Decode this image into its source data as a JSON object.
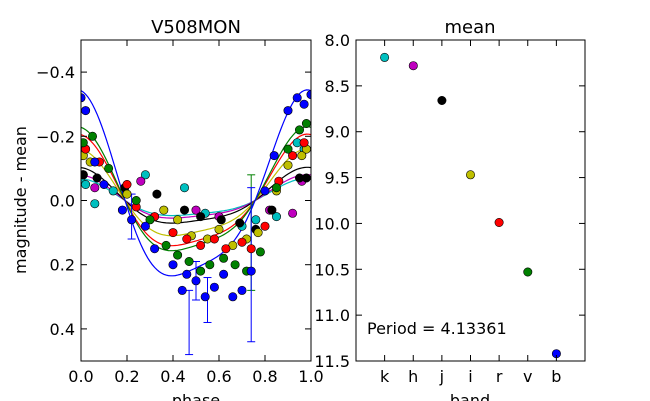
{
  "chart_data": [
    {
      "type": "scatter",
      "title": "V508MON",
      "xlabel": "phase",
      "ylabel": "magnitude - mean",
      "xlim": [
        0.0,
        1.0
      ],
      "ylim": [
        0.5,
        -0.5
      ],
      "xticks": [
        "0.0",
        "0.2",
        "0.4",
        "0.6",
        "0.8",
        "1.0"
      ],
      "yticks": [
        "−0.4",
        "−0.2",
        "0.0",
        "0.2",
        "0.4"
      ],
      "ytick_values": [
        -0.4,
        -0.2,
        0.0,
        0.2,
        0.4
      ],
      "xtick_values": [
        0.0,
        0.2,
        0.4,
        0.6,
        0.8,
        1.0
      ],
      "series": [
        {
          "name": "k",
          "color": "#00bfbf",
          "amplitude": 0.06,
          "points": [
            [
              0.0,
              -0.06
            ],
            [
              0.02,
              -0.05
            ],
            [
              0.06,
              0.01
            ],
            [
              0.14,
              -0.03
            ],
            [
              0.28,
              -0.08
            ],
            [
              0.45,
              -0.04
            ],
            [
              0.54,
              0.04
            ],
            [
              0.7,
              0.08
            ],
            [
              0.76,
              0.06
            ],
            [
              0.85,
              0.05
            ],
            [
              0.94,
              -0.18
            ],
            [
              0.97,
              -0.16
            ]
          ]
        },
        {
          "name": "h",
          "color": "#bf00bf",
          "amplitude": 0.07,
          "points": [
            [
              0.01,
              -0.08
            ],
            [
              0.06,
              -0.04
            ],
            [
              0.26,
              -0.06
            ],
            [
              0.5,
              0.03
            ],
            [
              0.6,
              0.05
            ],
            [
              0.82,
              0.03
            ],
            [
              0.92,
              0.04
            ],
            [
              0.96,
              -0.06
            ]
          ]
        },
        {
          "name": "j",
          "color": "#000000",
          "amplitude": 0.09,
          "points": [
            [
              0.01,
              -0.08
            ],
            [
              0.07,
              -0.07
            ],
            [
              0.19,
              -0.04
            ],
            [
              0.33,
              -0.02
            ],
            [
              0.45,
              0.03
            ],
            [
              0.52,
              0.05
            ],
            [
              0.61,
              0.06
            ],
            [
              0.69,
              0.07
            ],
            [
              0.76,
              0.09
            ],
            [
              0.83,
              0.03
            ],
            [
              0.95,
              -0.07
            ],
            [
              0.98,
              -0.07
            ]
          ]
        },
        {
          "name": "i",
          "color": "#bfbf00",
          "amplitude": 0.14,
          "points": [
            [
              0.01,
              -0.14
            ],
            [
              0.04,
              -0.12
            ],
            [
              0.2,
              -0.02
            ],
            [
              0.36,
              0.03
            ],
            [
              0.42,
              0.06
            ],
            [
              0.48,
              0.11
            ],
            [
              0.55,
              0.12
            ],
            [
              0.6,
              0.09
            ],
            [
              0.66,
              0.14
            ],
            [
              0.72,
              0.12
            ],
            [
              0.77,
              0.1
            ],
            [
              0.85,
              -0.03
            ],
            [
              0.9,
              -0.11
            ],
            [
              0.96,
              -0.14
            ],
            [
              0.98,
              -0.16
            ]
          ]
        },
        {
          "name": "r",
          "color": "#ff0000",
          "amplitude": 0.18,
          "points": [
            [
              0.02,
              -0.16
            ],
            [
              0.08,
              -0.12
            ],
            [
              0.2,
              -0.05
            ],
            [
              0.24,
              0.02
            ],
            [
              0.32,
              0.05
            ],
            [
              0.4,
              0.1
            ],
            [
              0.46,
              0.12
            ],
            [
              0.52,
              0.14
            ],
            [
              0.58,
              0.12
            ],
            [
              0.63,
              0.15
            ],
            [
              0.7,
              0.13
            ],
            [
              0.74,
              0.15
            ],
            [
              0.8,
              0.08
            ],
            [
              0.86,
              -0.06
            ],
            [
              0.92,
              -0.14
            ],
            [
              0.97,
              -0.18
            ]
          ]
        },
        {
          "name": "v",
          "color": "#008000",
          "amplitude": 0.2,
          "points": [
            [
              0.01,
              -0.18
            ],
            [
              0.05,
              -0.2
            ],
            [
              0.12,
              -0.1
            ],
            [
              0.24,
              0.0
            ],
            [
              0.3,
              0.06
            ],
            [
              0.37,
              0.14
            ],
            [
              0.42,
              0.17
            ],
            [
              0.47,
              0.19
            ],
            [
              0.52,
              0.22
            ],
            [
              0.56,
              0.2
            ],
            [
              0.62,
              0.18
            ],
            [
              0.67,
              0.2
            ],
            [
              0.72,
              0.22
            ],
            [
              0.78,
              0.16
            ],
            [
              0.85,
              -0.04
            ],
            [
              0.9,
              -0.16
            ],
            [
              0.95,
              -0.22
            ],
            [
              0.98,
              -0.24
            ]
          ]
        },
        {
          "name": "b",
          "color": "#0000ff",
          "amplitude": 0.3,
          "points": [
            [
              0.0,
              -0.32
            ],
            [
              0.02,
              -0.28
            ],
            [
              0.06,
              -0.12
            ],
            [
              0.1,
              -0.05
            ],
            [
              0.18,
              0.03
            ],
            [
              0.22,
              0.06
            ],
            [
              0.28,
              0.08
            ],
            [
              0.32,
              0.15
            ],
            [
              0.4,
              0.2
            ],
            [
              0.44,
              0.28
            ],
            [
              0.46,
              0.23
            ],
            [
              0.5,
              0.25
            ],
            [
              0.54,
              0.3
            ],
            [
              0.58,
              0.27
            ],
            [
              0.62,
              0.23
            ],
            [
              0.66,
              0.3
            ],
            [
              0.7,
              0.28
            ],
            [
              0.74,
              0.22
            ],
            [
              0.8,
              -0.03
            ],
            [
              0.84,
              -0.14
            ],
            [
              0.9,
              -0.28
            ],
            [
              0.94,
              -0.32
            ],
            [
              0.97,
              -0.3
            ],
            [
              1.0,
              -0.33
            ]
          ]
        }
      ],
      "error_bars": [
        {
          "color": "#008000",
          "x": 0.74,
          "y": 0.1,
          "err": 0.18
        },
        {
          "color": "#0000ff",
          "x": 0.74,
          "y": 0.2,
          "err": 0.24
        },
        {
          "color": "#0000ff",
          "x": 0.47,
          "y": 0.38,
          "err": 0.1
        },
        {
          "color": "#0000ff",
          "x": 0.55,
          "y": 0.31,
          "err": 0.07
        },
        {
          "color": "#0000ff",
          "x": 0.22,
          "y": 0.05,
          "err": 0.07
        },
        {
          "color": "#0000ff",
          "x": 0.5,
          "y": 0.25,
          "err": 0.06
        }
      ]
    },
    {
      "type": "scatter",
      "title": "mean",
      "xlabel": "band",
      "ylabel": "",
      "ylim": [
        11.5,
        8.0
      ],
      "categories": [
        "k",
        "h",
        "j",
        "i",
        "r",
        "v",
        "b"
      ],
      "values": [
        8.19,
        8.28,
        8.66,
        9.47,
        9.99,
        10.53,
        11.42
      ],
      "colors": [
        "#00bfbf",
        "#bf00bf",
        "#000000",
        "#bfbf00",
        "#ff0000",
        "#008000",
        "#0000ff"
      ],
      "yticks": [
        "8.0",
        "8.5",
        "9.0",
        "9.5",
        "10.0",
        "10.5",
        "11.0",
        "11.5"
      ],
      "ytick_values": [
        8.0,
        8.5,
        9.0,
        9.5,
        10.0,
        10.5,
        11.0,
        11.5
      ],
      "annotation_label": "Period = ",
      "annotation_value": "4.13361"
    }
  ]
}
